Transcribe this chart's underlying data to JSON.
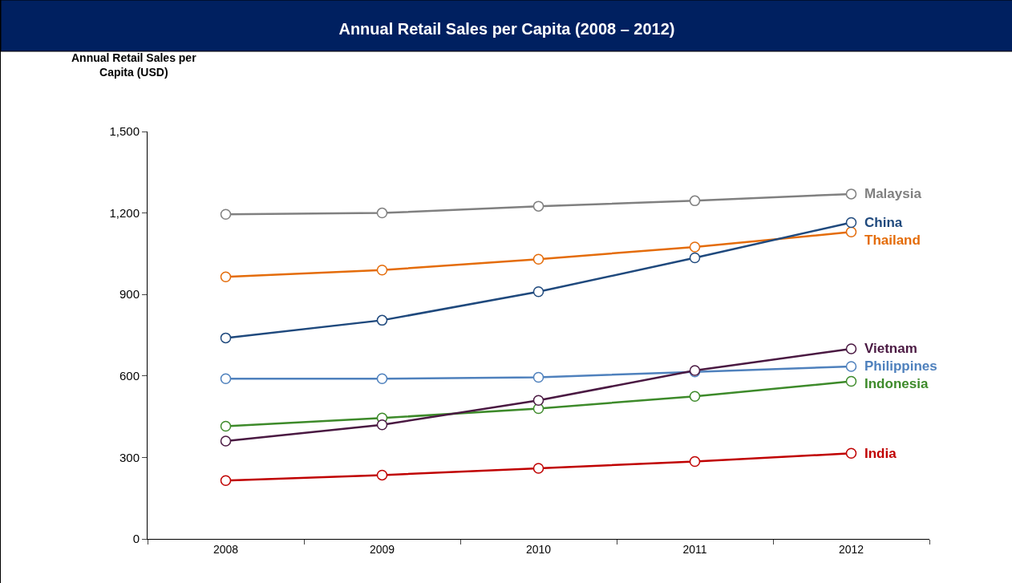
{
  "chart_data": {
    "type": "line",
    "title": "Annual Retail Sales per Capita (2008 – 2012)",
    "ylabel": "Annual Retail Sales per Capita (USD)",
    "categories": [
      "2008",
      "2009",
      "2010",
      "2011",
      "2012"
    ],
    "series": [
      {
        "name": "Malaysia",
        "color": "#808080",
        "values": [
          1195,
          1200,
          1225,
          1245,
          1270
        ]
      },
      {
        "name": "China",
        "color": "#1f497d",
        "values": [
          740,
          805,
          910,
          1035,
          1165
        ]
      },
      {
        "name": "Thailand",
        "color": "#e46c0a",
        "values": [
          965,
          990,
          1030,
          1075,
          1130
        ]
      },
      {
        "name": "Vietnam",
        "color": "#4a1942",
        "values": [
          360,
          420,
          510,
          620,
          700
        ]
      },
      {
        "name": "Philippines",
        "color": "#4f81bd",
        "values": [
          590,
          590,
          595,
          615,
          635
        ]
      },
      {
        "name": "Indonesia",
        "color": "#3d8a2a",
        "values": [
          415,
          445,
          480,
          525,
          580
        ]
      },
      {
        "name": "India",
        "color": "#c00000",
        "values": [
          215,
          235,
          260,
          285,
          315
        ]
      }
    ],
    "ylim": [
      0,
      1500
    ],
    "yticks": [
      0,
      {
        "value": 300,
        "label": "300"
      },
      {
        "value": 600,
        "label": "600"
      },
      {
        "value": 900,
        "label": "900"
      },
      {
        "value": 1200,
        "label": "1,200"
      },
      {
        "value": 1500,
        "label": "1,500"
      }
    ],
    "grid": false,
    "legend": false,
    "marker": "circle",
    "line_style": "solid"
  }
}
